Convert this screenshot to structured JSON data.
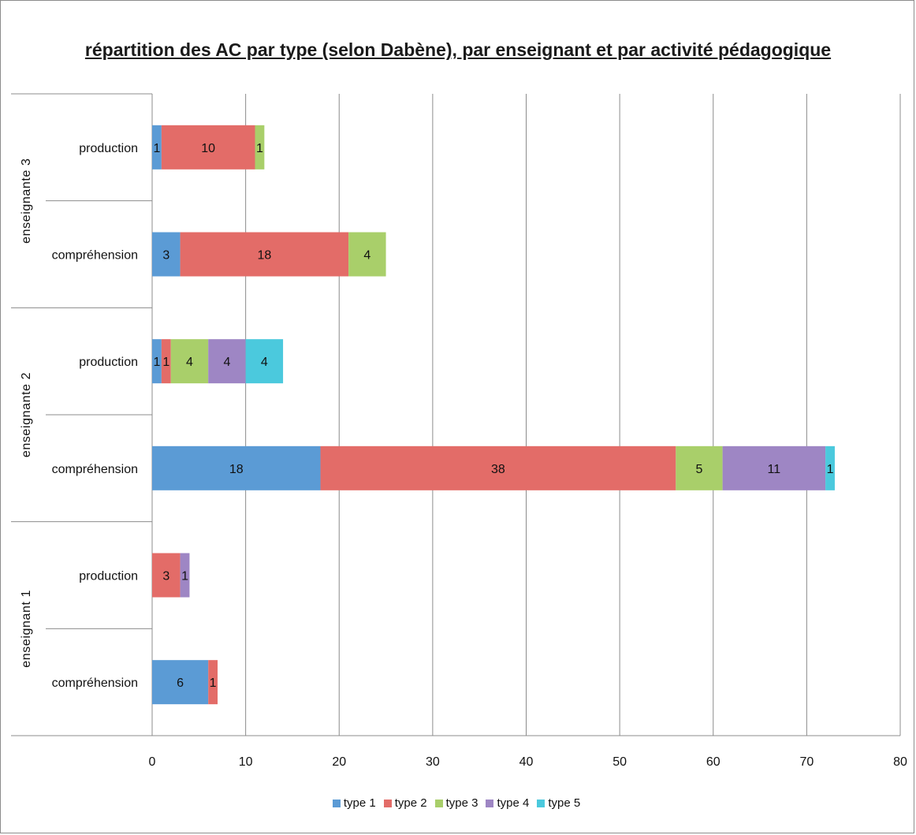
{
  "chart_data": {
    "type": "bar",
    "orientation": "horizontal",
    "stacked": true,
    "title": "répartition des AC par type (selon Dabène), par enseignant et par activité pédagogique",
    "groups": [
      {
        "label": "enseignante 3",
        "categories": [
          "production",
          "compréhension"
        ]
      },
      {
        "label": "enseignante 2",
        "categories": [
          "production",
          "compréhension"
        ]
      },
      {
        "label": "enseignant 1",
        "categories": [
          "production",
          "compréhension"
        ]
      }
    ],
    "categories": [
      "enseignante 3 · production",
      "enseignante 3 · compréhension",
      "enseignante 2 · production",
      "enseignante 2 · compréhension",
      "enseignant 1 · production",
      "enseignant 1 · compréhension"
    ],
    "series": [
      {
        "name": "type 1",
        "color": "#5b9bd5",
        "values": [
          1,
          3,
          1,
          18,
          0,
          6
        ]
      },
      {
        "name": "type 2",
        "color": "#e36c68",
        "values": [
          10,
          18,
          1,
          38,
          3,
          1
        ]
      },
      {
        "name": "type 3",
        "color": "#a9cf6a",
        "values": [
          1,
          4,
          4,
          5,
          0,
          0
        ]
      },
      {
        "name": "type 4",
        "color": "#9e86c4",
        "values": [
          0,
          0,
          4,
          11,
          1,
          0
        ]
      },
      {
        "name": "type 5",
        "color": "#4bc9dd",
        "values": [
          0,
          0,
          4,
          1,
          0,
          0
        ]
      }
    ],
    "xlim": [
      0,
      80
    ],
    "xticks": [
      0,
      10,
      20,
      30,
      40,
      50,
      60,
      70,
      80
    ],
    "grid": true,
    "legend": "bottom"
  }
}
